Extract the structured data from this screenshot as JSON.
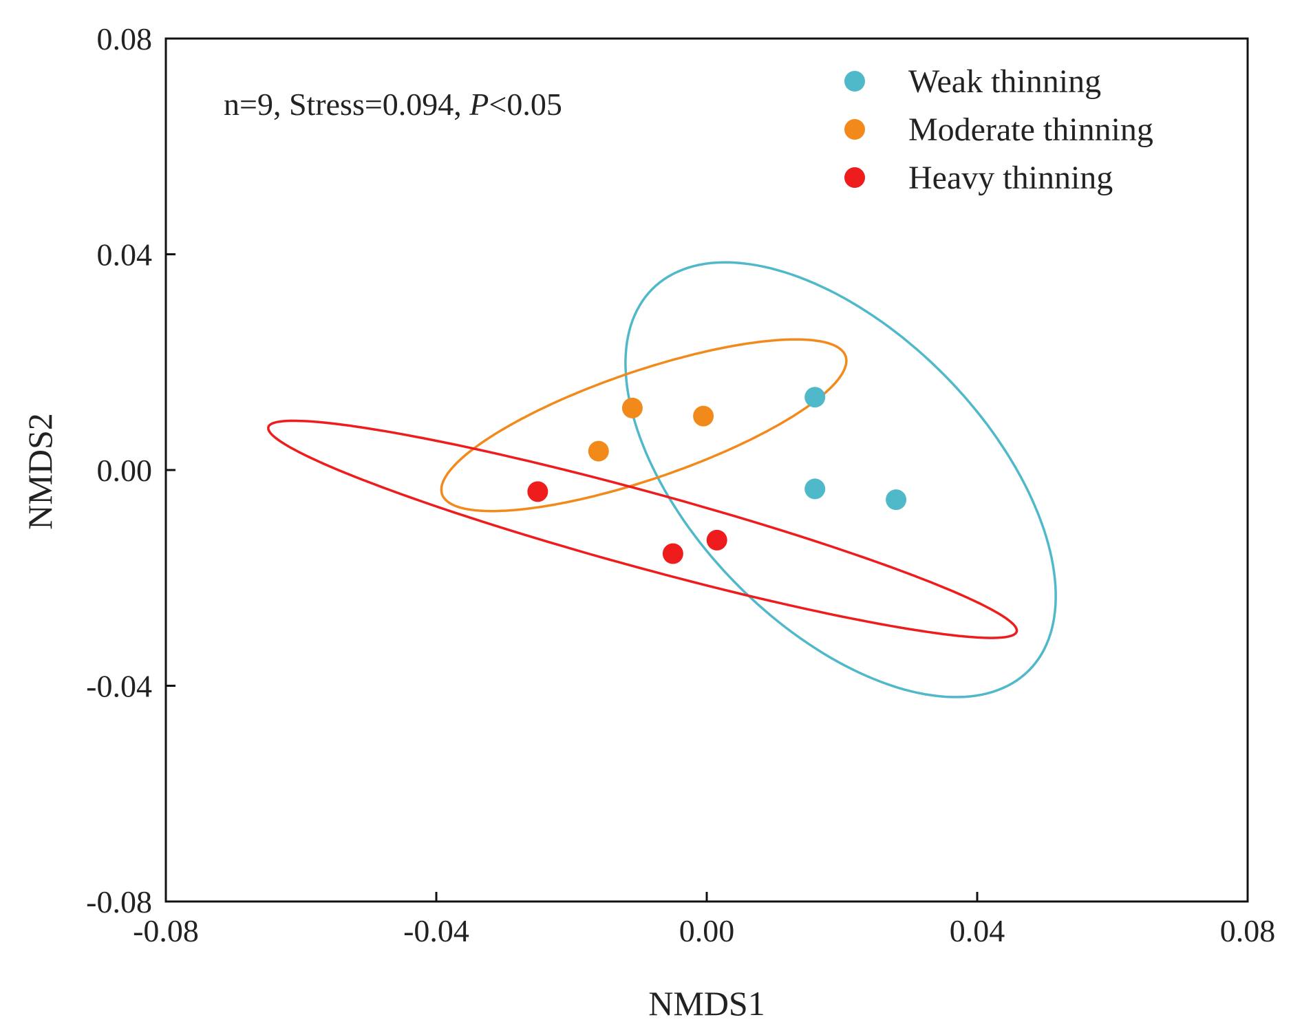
{
  "chart_data": {
    "type": "scatter",
    "xlabel": "NMDS1",
    "ylabel": "NMDS2",
    "xlim": [
      -0.08,
      0.08
    ],
    "ylim": [
      -0.08,
      0.08
    ],
    "xticks": [
      "-0.08",
      "-0.04",
      "0.00",
      "0.04",
      "0.08"
    ],
    "yticks": [
      "-0.08",
      "-0.04",
      "0.00",
      "0.04",
      "0.08"
    ],
    "xtick_values": [
      -0.08,
      -0.04,
      0.0,
      0.04,
      0.08
    ],
    "ytick_values": [
      -0.08,
      -0.04,
      0.0,
      0.04,
      0.08
    ],
    "annotation": {
      "prefix": "n=9, Stress=0.094, ",
      "p_symbol": "P",
      "suffix": "<0.05"
    },
    "legend_position": "top-right",
    "series": [
      {
        "name": "Weak thinning",
        "color": "#4fb8c9",
        "points": [
          [
            0.016,
            0.0135
          ],
          [
            0.016,
            -0.0035
          ],
          [
            0.028,
            -0.0055
          ]
        ],
        "ellipse": {
          "cx": 0.0198,
          "cy": -0.0018,
          "rx": 0.0455,
          "ry": 0.0238,
          "angle_deg": -57
        }
      },
      {
        "name": "Moderate thinning",
        "color": "#f28a1b",
        "points": [
          [
            -0.016,
            0.0035
          ],
          [
            -0.011,
            0.0115
          ],
          [
            -0.0005,
            0.01
          ]
        ],
        "ellipse": {
          "cx": -0.0093,
          "cy": 0.0083,
          "rx": 0.0325,
          "ry": 0.0097,
          "angle_deg": 24
        }
      },
      {
        "name": "Heavy thinning",
        "color": "#ee1c1c",
        "points": [
          [
            -0.025,
            -0.004
          ],
          [
            -0.005,
            -0.0155
          ],
          [
            0.0015,
            -0.013
          ]
        ],
        "ellipse": {
          "cx": -0.0095,
          "cy": -0.011,
          "rx": 0.0585,
          "ry": 0.0069,
          "angle_deg": -19
        }
      }
    ]
  }
}
